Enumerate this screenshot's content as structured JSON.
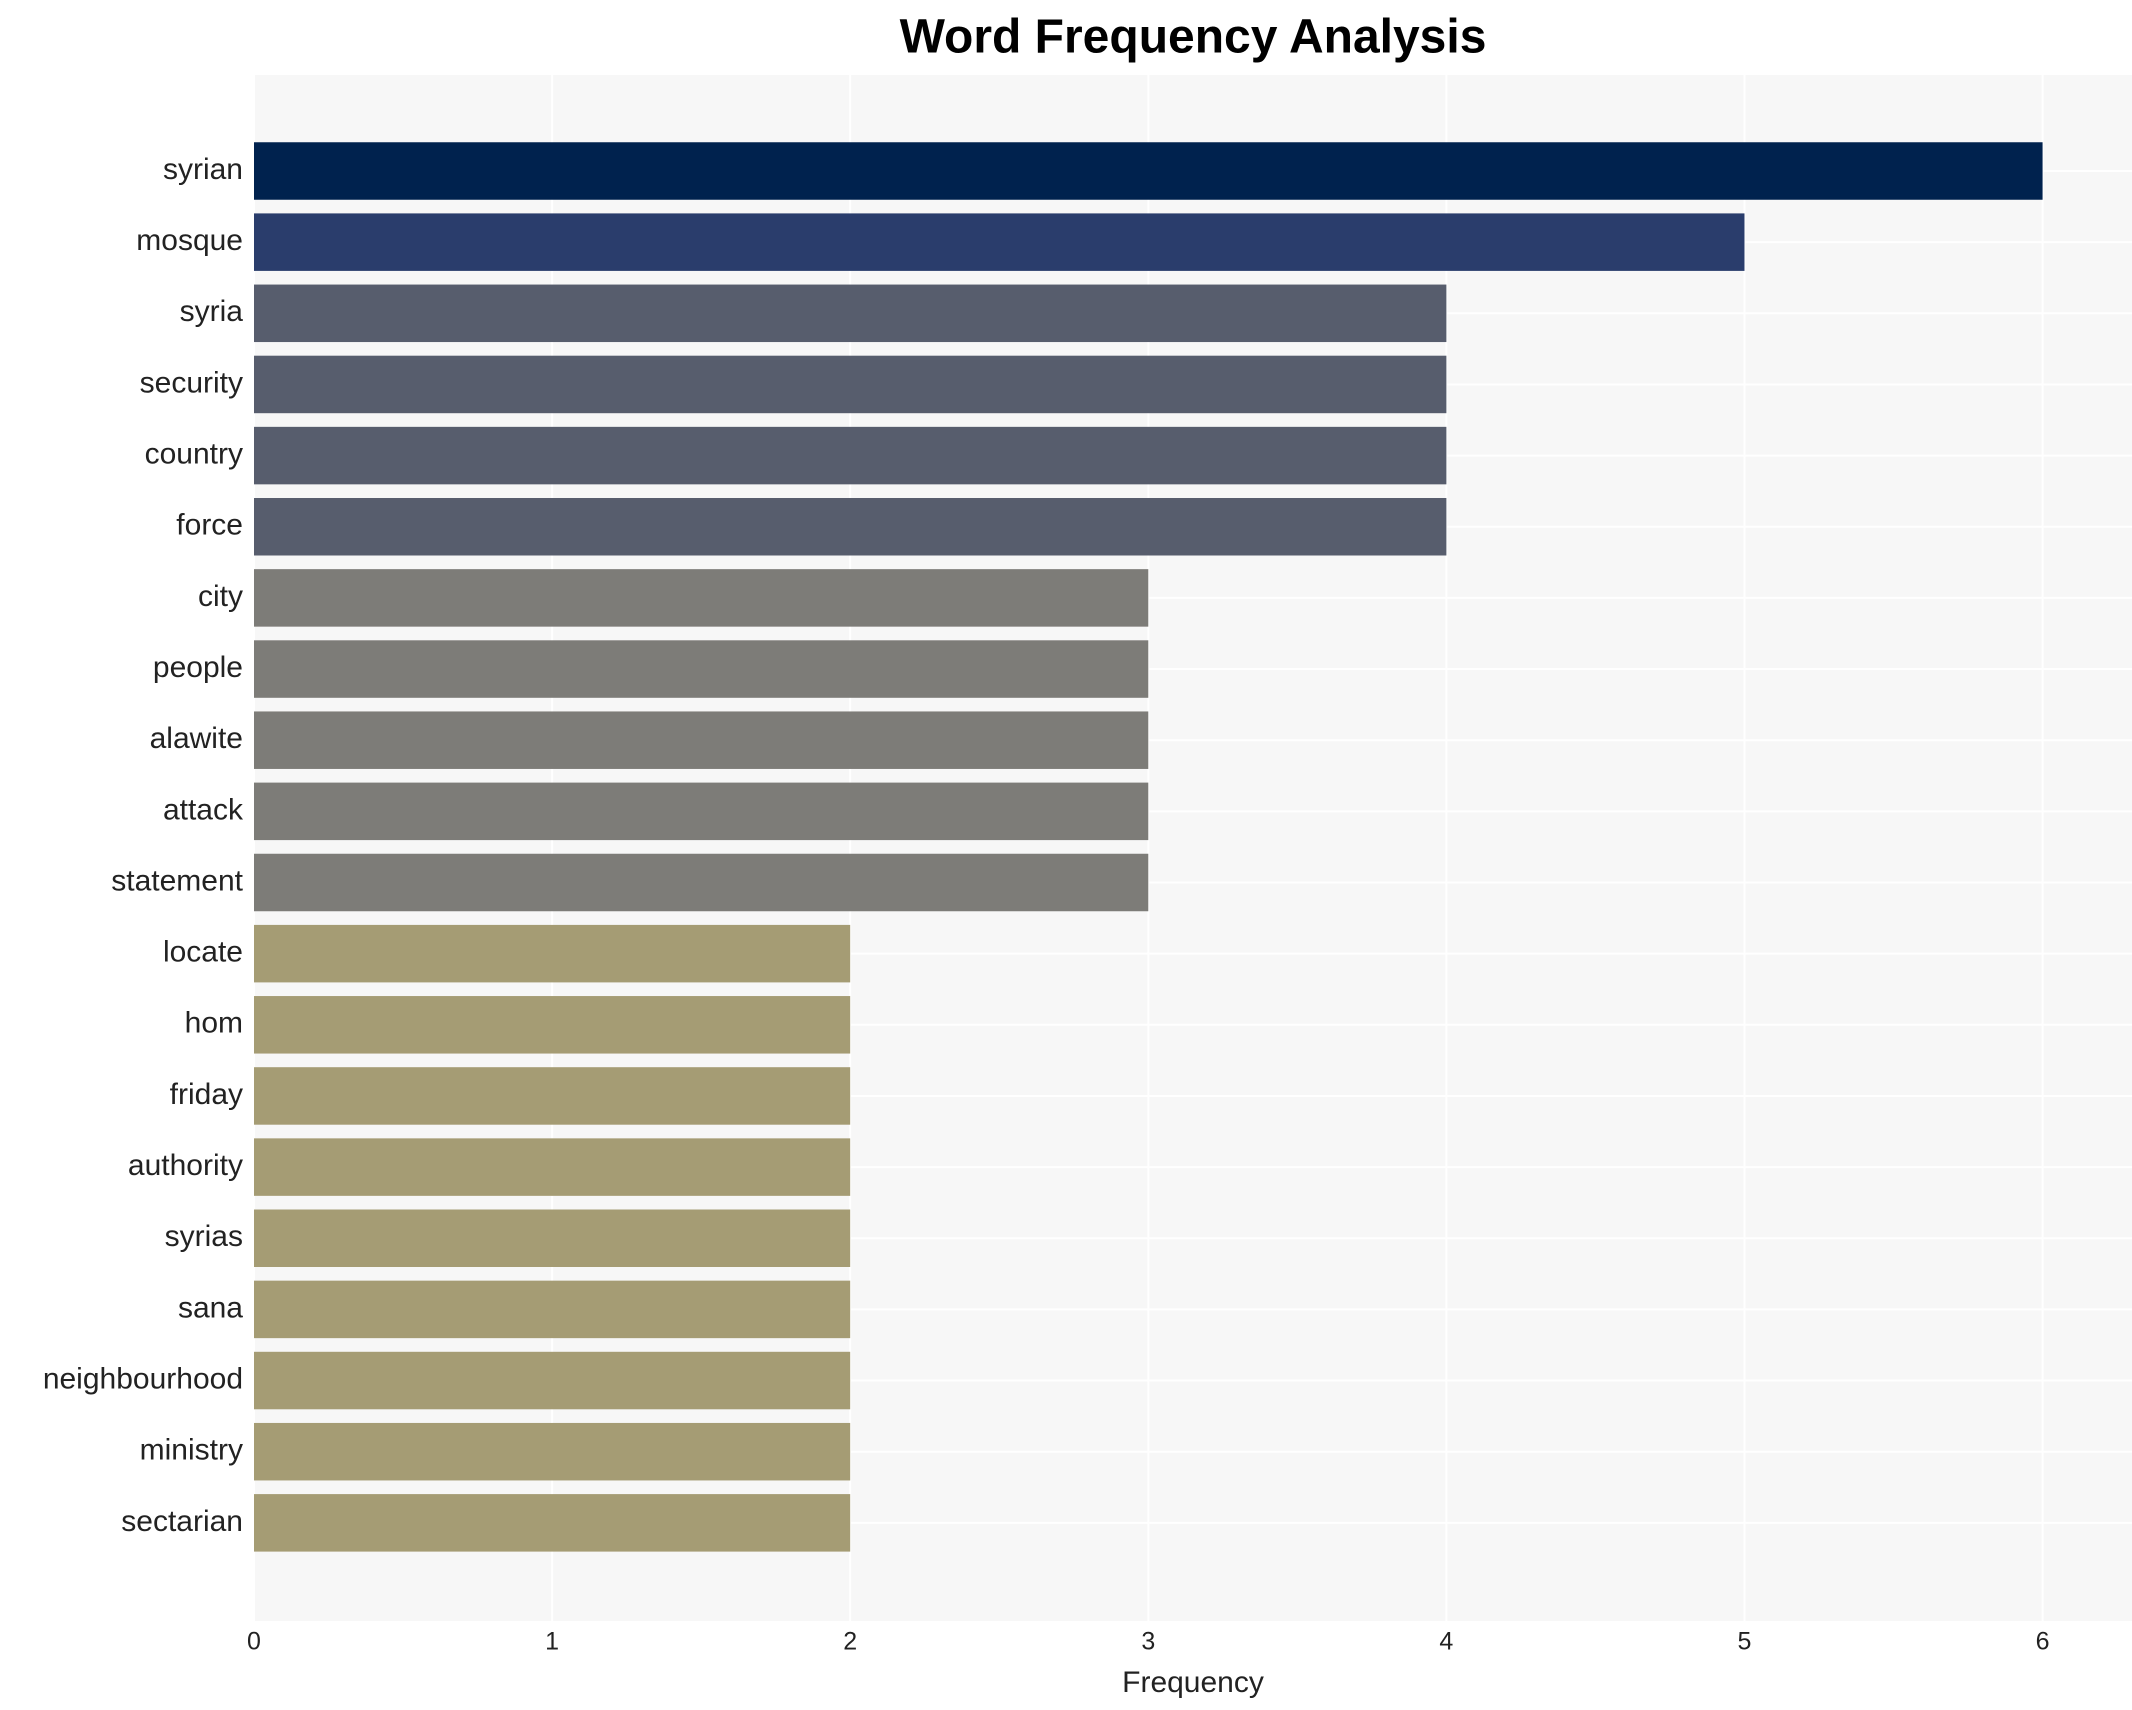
{
  "chart_data": {
    "type": "bar",
    "orientation": "horizontal",
    "title": "Word Frequency Analysis",
    "x_label": "Frequency",
    "categories": [
      "syrian",
      "mosque",
      "syria",
      "security",
      "country",
      "force",
      "city",
      "people",
      "alawite",
      "attack",
      "statement",
      "locate",
      "hom",
      "friday",
      "authority",
      "syrias",
      "sana",
      "neighbourhood",
      "ministry",
      "sectarian"
    ],
    "values": [
      6,
      5,
      4,
      4,
      4,
      4,
      3,
      3,
      3,
      3,
      3,
      2,
      2,
      2,
      2,
      2,
      2,
      2,
      2,
      2
    ],
    "colors": [
      "#00224e",
      "#2a3d6c",
      "#575d6d",
      "#575d6d",
      "#575d6d",
      "#575d6d",
      "#7d7c78",
      "#7d7c78",
      "#7d7c78",
      "#7d7c78",
      "#7d7c78",
      "#a59c74",
      "#a59c74",
      "#a59c74",
      "#a59c74",
      "#a59c74",
      "#a59c74",
      "#a59c74",
      "#a59c74",
      "#a59c74"
    ],
    "xlim": [
      0,
      6.3
    ],
    "xticks": [
      0,
      1,
      2,
      3,
      4,
      5,
      6
    ],
    "grid": true
  }
}
